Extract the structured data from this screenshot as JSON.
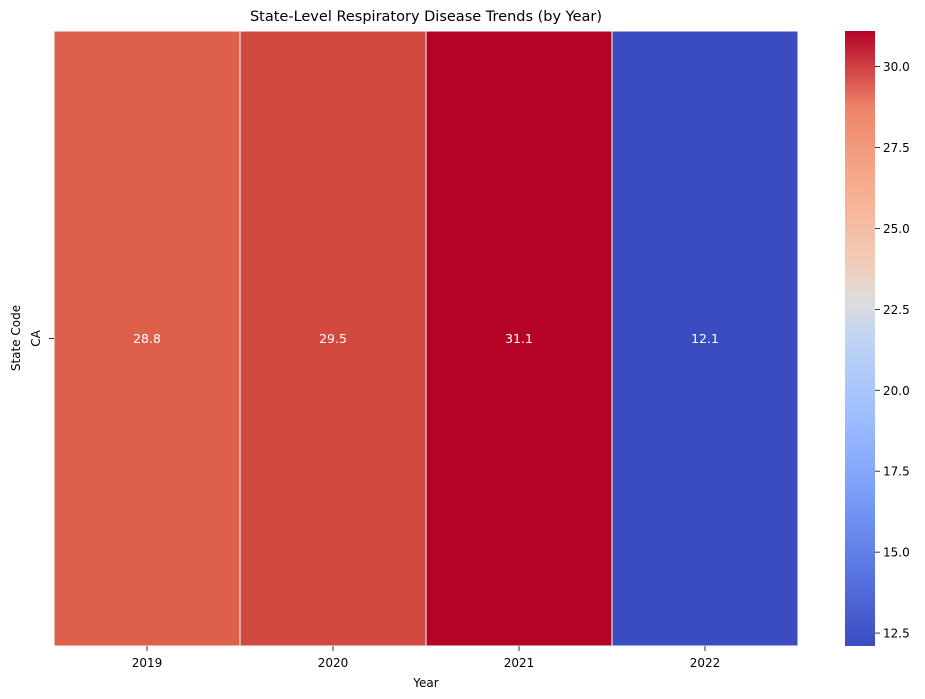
{
  "chart_data": {
    "type": "heatmap",
    "title": "State-Level Respiratory Disease Trends (by Year)",
    "xlabel": "Year",
    "ylabel": "State Code",
    "x_categories": [
      "2019",
      "2020",
      "2021",
      "2022"
    ],
    "y_categories": [
      "CA"
    ],
    "values": [
      [
        28.8,
        29.5,
        31.1,
        12.1
      ]
    ],
    "annotations": [
      [
        "28.8",
        "29.5",
        "31.1",
        "12.1"
      ]
    ],
    "colormap": "coolwarm",
    "cell_colors": [
      [
        "#de604b",
        "#d1493f",
        "#b40426",
        "#3b4cc0"
      ]
    ],
    "colorbar": {
      "vmin": 12.1,
      "vmax": 31.1,
      "ticks": [
        "12.5",
        "15.0",
        "17.5",
        "20.0",
        "22.5",
        "25.0",
        "27.5",
        "30.0"
      ],
      "tick_values": [
        12.5,
        15.0,
        17.5,
        20.0,
        22.5,
        25.0,
        27.5,
        30.0
      ]
    },
    "grid": false,
    "legend": "colorbar-right"
  }
}
